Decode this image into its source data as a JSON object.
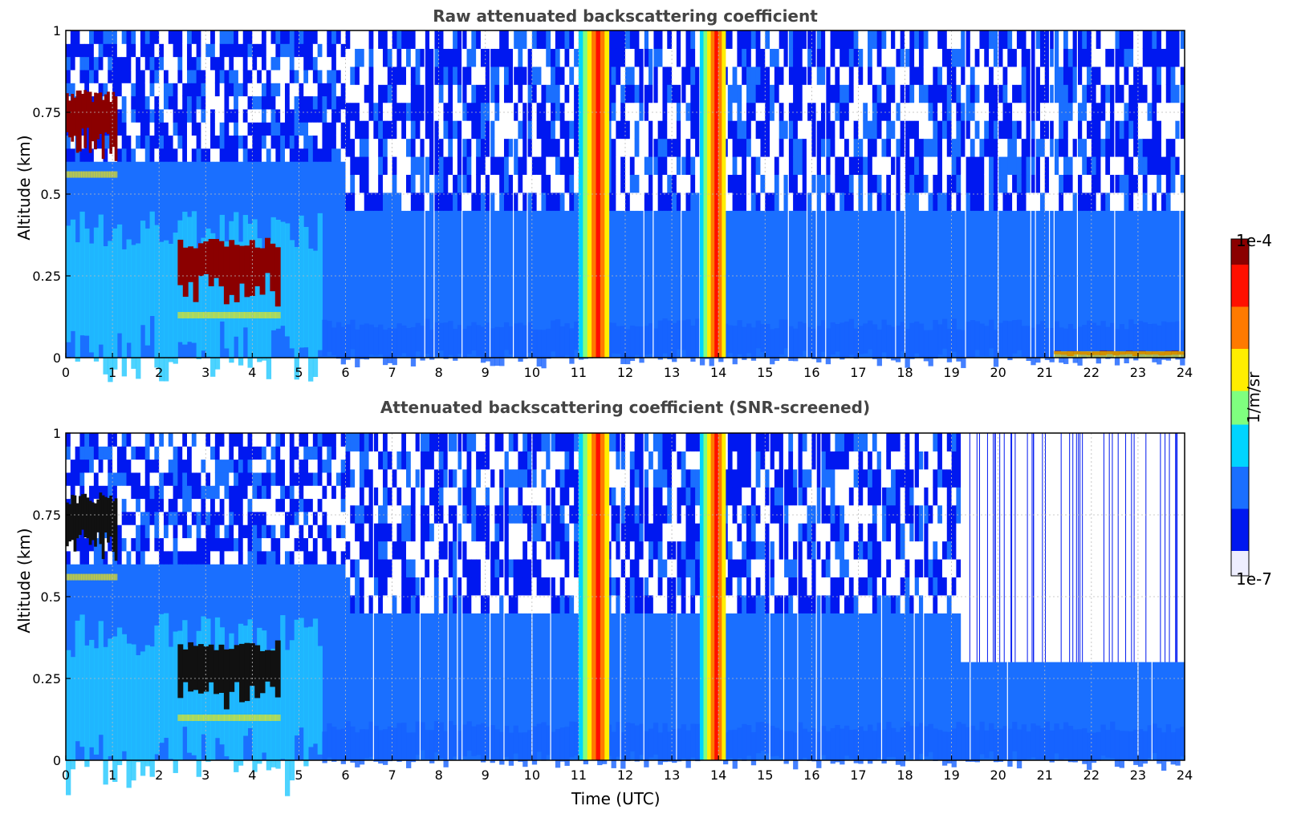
{
  "chart_data": [
    {
      "type": "heatmap",
      "title": "Raw attenuated backscattering coefficient",
      "xlabel": "",
      "ylabel": "Altitude (km)",
      "xlim": [
        0,
        24
      ],
      "ylim": [
        0,
        1
      ],
      "x_ticks": [
        "0",
        "1",
        "2",
        "3",
        "4",
        "5",
        "6",
        "7",
        "8",
        "9",
        "10",
        "11",
        "12",
        "13",
        "14",
        "15",
        "16",
        "17",
        "18",
        "19",
        "20",
        "21",
        "22",
        "23",
        "24"
      ],
      "y_ticks": [
        "0",
        "0.25",
        "0.5",
        "0.75",
        "1"
      ],
      "grid": true,
      "features": [
        {
          "desc": "elevated aerosol/cloud layer",
          "x": [
            0,
            1.1
          ],
          "alt_km": [
            0.55,
            0.8
          ],
          "level": "high"
        },
        {
          "desc": "descending layer",
          "x": [
            2.4,
            4.6
          ],
          "alt_km": [
            0.12,
            0.35
          ],
          "level": "high"
        },
        {
          "desc": "precipitation column",
          "x": [
            11.0,
            11.65
          ],
          "alt_km": [
            0,
            1
          ],
          "level": "high"
        },
        {
          "desc": "precipitation column",
          "x": [
            13.6,
            14.15
          ],
          "alt_km": [
            0,
            1
          ],
          "level": "high"
        },
        {
          "desc": "near-surface layer",
          "x": [
            21.2,
            24
          ],
          "alt_km": [
            0,
            0.02
          ],
          "level": "high"
        }
      ]
    },
    {
      "type": "heatmap",
      "title": "Attenuated backscattering coefficient (SNR-screened)",
      "xlabel": "Time (UTC)",
      "ylabel": "Altitude (km)",
      "xlim": [
        0,
        24
      ],
      "ylim": [
        0,
        1
      ],
      "x_ticks": [
        "0",
        "1",
        "2",
        "3",
        "4",
        "5",
        "6",
        "7",
        "8",
        "9",
        "10",
        "11",
        "12",
        "13",
        "14",
        "15",
        "16",
        "17",
        "18",
        "19",
        "20",
        "21",
        "22",
        "23",
        "24"
      ],
      "y_ticks": [
        "0",
        "0.25",
        "0.5",
        "0.75",
        "1"
      ],
      "grid": true,
      "features": [
        {
          "desc": "elevated layer",
          "x": [
            0,
            1.1
          ],
          "alt_km": [
            0.55,
            0.8
          ],
          "level": "saturated"
        },
        {
          "desc": "descending layer",
          "x": [
            2.4,
            4.6
          ],
          "alt_km": [
            0.12,
            0.35
          ],
          "level": "saturated"
        },
        {
          "desc": "precipitation column",
          "x": [
            11.0,
            11.65
          ],
          "alt_km": [
            0,
            1
          ],
          "level": "high"
        },
        {
          "desc": "precipitation column",
          "x": [
            13.6,
            14.15
          ],
          "alt_km": [
            0,
            1
          ],
          "level": "high"
        },
        {
          "desc": "screened-out region",
          "x": [
            19.2,
            24
          ],
          "alt_km": [
            0.3,
            1
          ],
          "level": "none"
        }
      ]
    }
  ],
  "colorbar": {
    "label": "1/m/sr",
    "max_label": "1e-4",
    "min_label": "1e-7",
    "colors": [
      "#eeeeff",
      "#0018f0",
      "#1a6fff",
      "#00d4ff",
      "#7fff7f",
      "#ffee00",
      "#ff7a00",
      "#ff1000",
      "#8b0000"
    ]
  }
}
